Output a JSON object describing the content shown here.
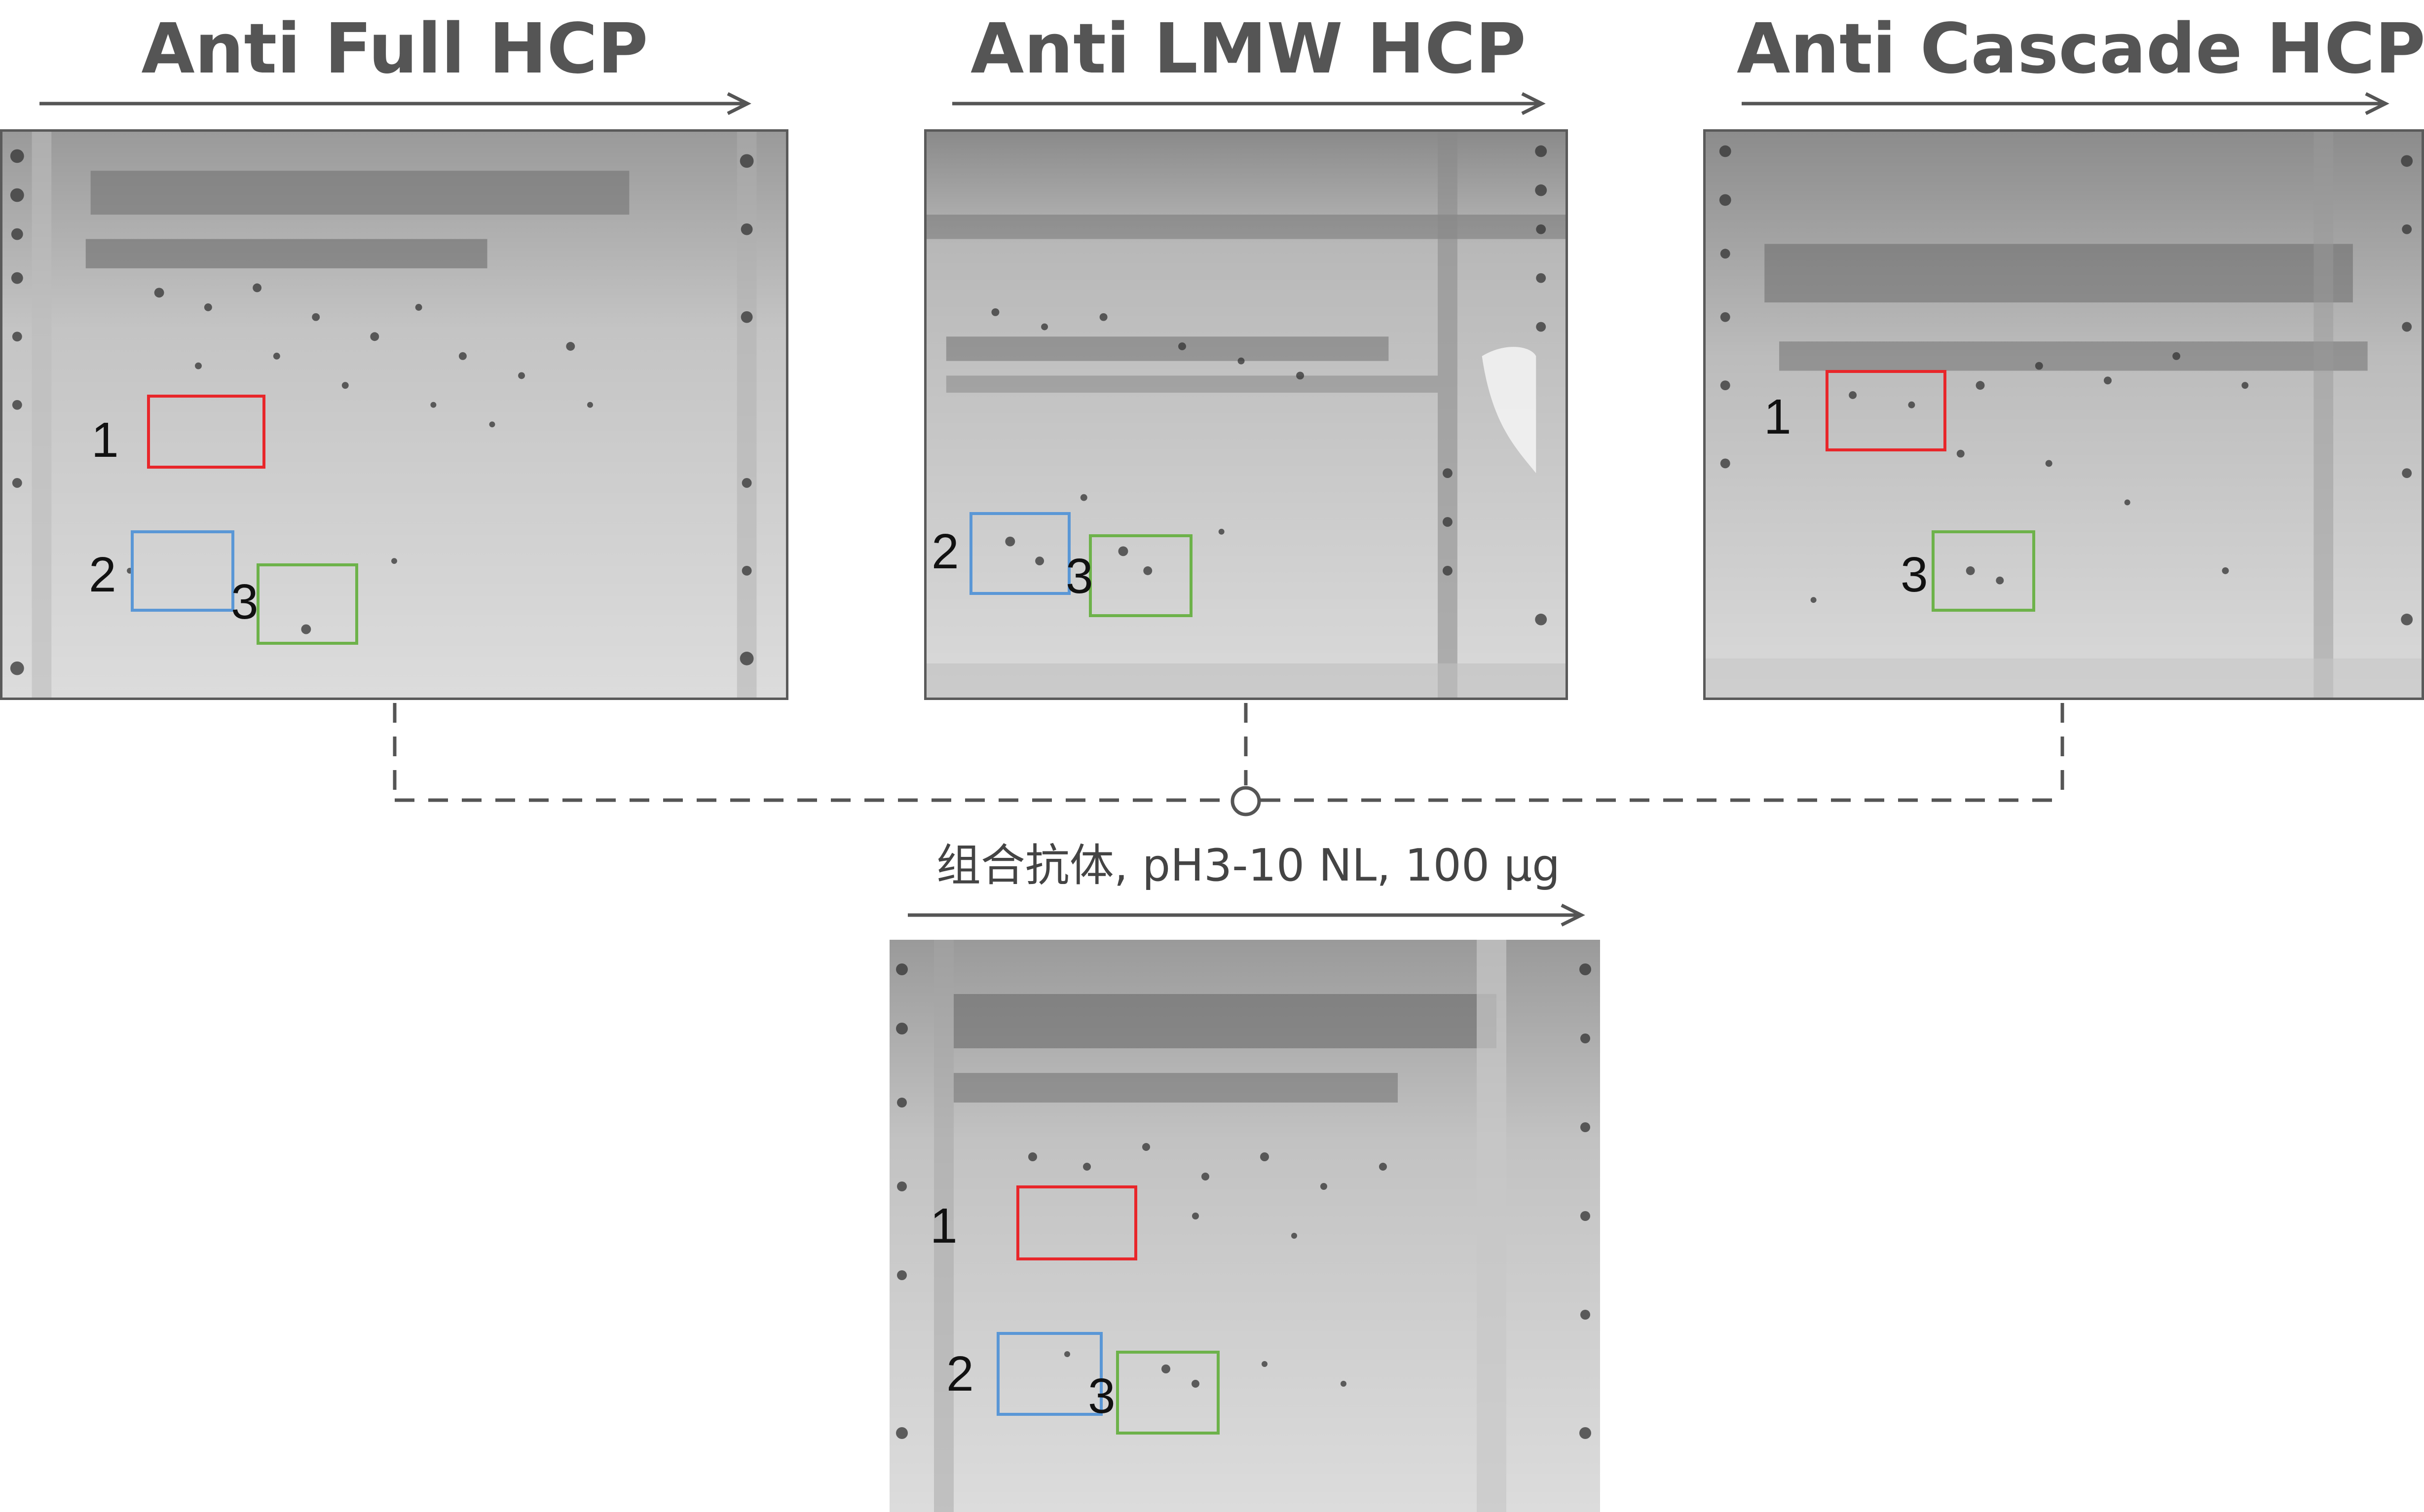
{
  "panels": [
    {
      "title": "Anti Full HCP",
      "box_labels": [
        "1",
        "2",
        "3"
      ]
    },
    {
      "title": "Anti LMW HCP",
      "box_labels": [
        "2",
        "3"
      ]
    },
    {
      "title": "Anti Cascade HCP",
      "box_labels": [
        "1",
        "3"
      ]
    }
  ],
  "combined": {
    "title": "组合抗体, pH3-10 NL, 100 µg",
    "box_labels": [
      "1",
      "2",
      "3"
    ]
  },
  "colors": {
    "box_1": "#e8262a",
    "box_2": "#5a97d6",
    "box_3": "#6db24a",
    "text": "#555555",
    "connector": "#555555"
  }
}
